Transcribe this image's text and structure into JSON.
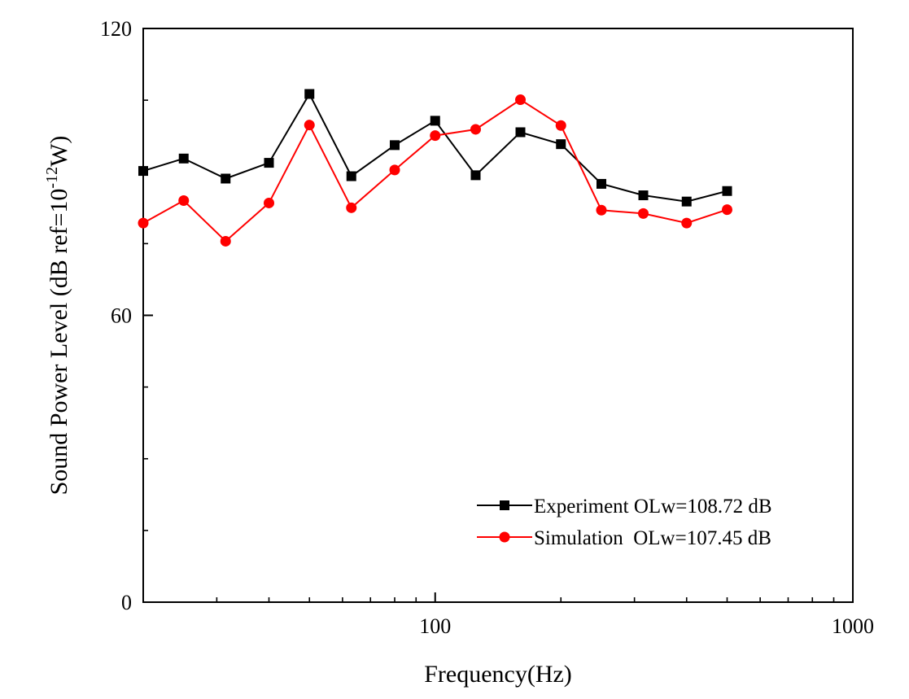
{
  "chart_data": {
    "type": "line",
    "xscale": "log",
    "xlim": [
      20,
      1000
    ],
    "ylim": [
      0,
      120
    ],
    "xlabel": "Frequency(Hz)",
    "ylabel": {
      "prefix": "Sound Power Level (dB ref=10",
      "superscript": "-12",
      "suffix": "W)"
    },
    "x_ticks": [
      100,
      1000
    ],
    "x_tick_labels": [
      "100",
      "1000"
    ],
    "y_ticks": [
      0,
      60,
      120
    ],
    "y_tick_labels": [
      "0",
      "60",
      "120"
    ],
    "grid": false,
    "legend_position": "bottom-right",
    "x": [
      20,
      25,
      31.5,
      40,
      50,
      63,
      80,
      100,
      125,
      160,
      200,
      250,
      315,
      400,
      500
    ],
    "series": [
      {
        "name": "Experiment OLw=108.72 dB",
        "color": "#000000",
        "marker": "square",
        "values": [
          90.2,
          92.8,
          88.6,
          91.9,
          106.3,
          89.1,
          95.6,
          100.7,
          89.3,
          98.3,
          95.8,
          87.5,
          85.1,
          83.8,
          86.0
        ]
      },
      {
        "name": "Simulation  OLw=107.45 dB",
        "color": "#ff0000",
        "marker": "circle",
        "values": [
          79.3,
          84.0,
          75.5,
          83.5,
          99.8,
          82.5,
          90.4,
          97.6,
          98.9,
          105.1,
          99.7,
          82.0,
          81.3,
          79.3,
          82.1
        ]
      }
    ]
  }
}
